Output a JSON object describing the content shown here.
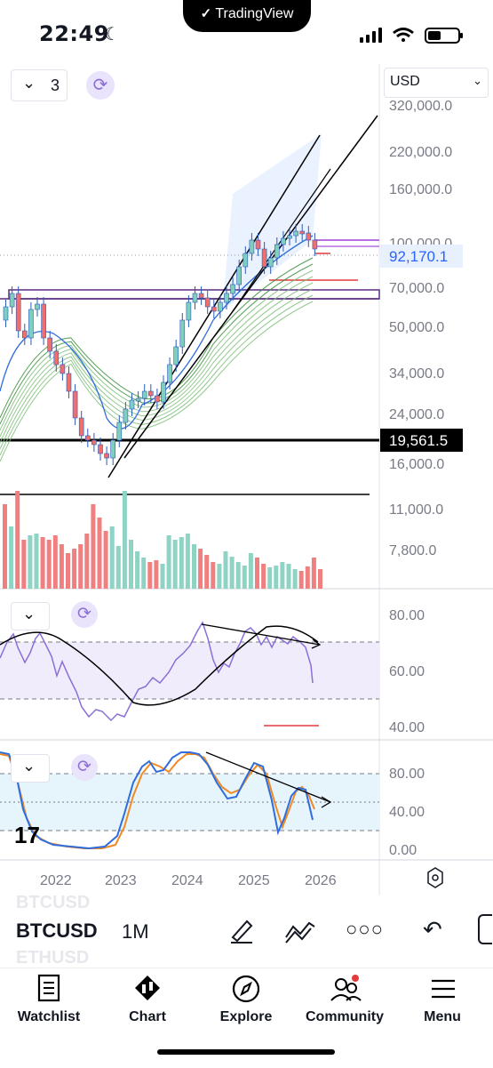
{
  "status_bar": {
    "time": "22:49",
    "moon_icon": "moon-icon",
    "banner": "TradingView"
  },
  "chart": {
    "interval_count": "3",
    "currency": "USD",
    "price_axis": [
      "320,000.0",
      "220,000.0",
      "160,000.0",
      "100,000.0",
      "70,000.0",
      "50,000.0",
      "34,000.0",
      "24,000.0",
      "16,000.0",
      "11,000.0",
      "7,800.0"
    ],
    "last_price": "92,170.1",
    "support_price": "19,561.5",
    "rsi_axis": [
      "80.00",
      "60.00",
      "40.00"
    ],
    "stoch_axis": [
      "80.00",
      "40.00",
      "0.00"
    ],
    "time_axis": [
      "2022",
      "2023",
      "2024",
      "2025",
      "2026"
    ],
    "colors": {
      "bull": "#7fcfc1",
      "bear": "#ef6f6f",
      "rsi": "#8c6fd6",
      "stoch_fast": "#2f6ddc",
      "stoch_slow": "#f08a24"
    }
  },
  "symbol_bar": {
    "symbol": "BTCUSD",
    "interval": "1M",
    "ghost_above": "BTCUSD",
    "ghost_below": "ETHUSD"
  },
  "tabs": [
    {
      "label": "Watchlist",
      "icon": "watchlist-icon"
    },
    {
      "label": "Chart",
      "icon": "chart-icon"
    },
    {
      "label": "Explore",
      "icon": "compass-icon"
    },
    {
      "label": "Community",
      "icon": "community-icon"
    },
    {
      "label": "Menu",
      "icon": "hamburger-icon"
    }
  ]
}
